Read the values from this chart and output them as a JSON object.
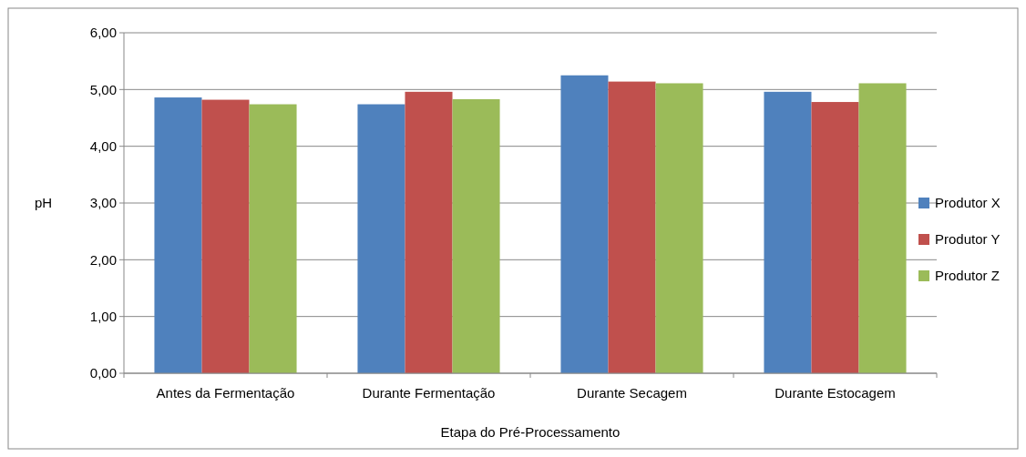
{
  "chart_data": {
    "type": "bar",
    "xlabel": "Etapa do Pré-Processamento",
    "ylabel": "pH",
    "categories": [
      "Antes da Fermentação",
      "Durante Fermentação",
      "Durante Secagem",
      "Durante Estocagem"
    ],
    "series": [
      {
        "name": "Produtor X",
        "color": "#4f81bd",
        "values": [
          4.86,
          4.74,
          5.25,
          4.96
        ]
      },
      {
        "name": "Produtor Y",
        "color": "#c0504d",
        "values": [
          4.82,
          4.96,
          5.14,
          4.78
        ]
      },
      {
        "name": "Produtor Z",
        "color": "#9bbb59",
        "values": [
          4.74,
          4.83,
          5.11,
          5.11
        ]
      }
    ],
    "ylim": [
      0,
      6
    ],
    "yticks": [
      {
        "value": 0,
        "label": "0,00"
      },
      {
        "value": 1,
        "label": "1,00"
      },
      {
        "value": 2,
        "label": "2,00"
      },
      {
        "value": 3,
        "label": "3,00"
      },
      {
        "value": 4,
        "label": "4,00"
      },
      {
        "value": 5,
        "label": "5,00"
      },
      {
        "value": 6,
        "label": "6,00"
      }
    ],
    "grid": "y",
    "legend": "right"
  }
}
